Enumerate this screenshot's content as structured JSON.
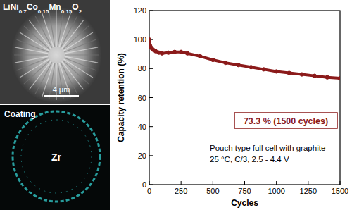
{
  "chart_data": {
    "type": "line",
    "x_label": "Cycles",
    "y_label": "Capacity retention (%)",
    "x": [
      0,
      5,
      10,
      20,
      30,
      50,
      75,
      100,
      150,
      200,
      250,
      300,
      400,
      500,
      600,
      700,
      800,
      900,
      1000,
      1100,
      1200,
      1300,
      1400,
      1500
    ],
    "series": [
      {
        "name": "LiNi0.7Co0.15Mn0.15O2",
        "color": "#8b1a1a",
        "marker": "circle",
        "line_style": "solid",
        "values": [
          100,
          96,
          95,
          94,
          93,
          92,
          91,
          90.5,
          91,
          91.5,
          91.5,
          90.5,
          88.5,
          86,
          84,
          82.5,
          81,
          79.5,
          78,
          77,
          76,
          75,
          74,
          73.3
        ]
      }
    ],
    "xlim": [
      0,
      1500
    ],
    "xticks": [
      0,
      250,
      500,
      750,
      1000,
      1250,
      1500
    ],
    "ylim": [
      0,
      120
    ],
    "yticks": [
      0,
      20,
      40,
      60,
      80,
      100,
      120
    ],
    "grid": false,
    "annotations": [
      {
        "text": "73.3 % (1500 cycles)"
      },
      {
        "text": "Pouch type full cell with graphite"
      },
      {
        "text": "25 °C, C/3, 2.5 - 4.4 V"
      }
    ]
  },
  "images": {
    "sem_label": "LiNi0.7Co0.15Mn0.15O2",
    "scale_bar": "4 μm",
    "map_label": "Coating",
    "element": "Zr"
  }
}
